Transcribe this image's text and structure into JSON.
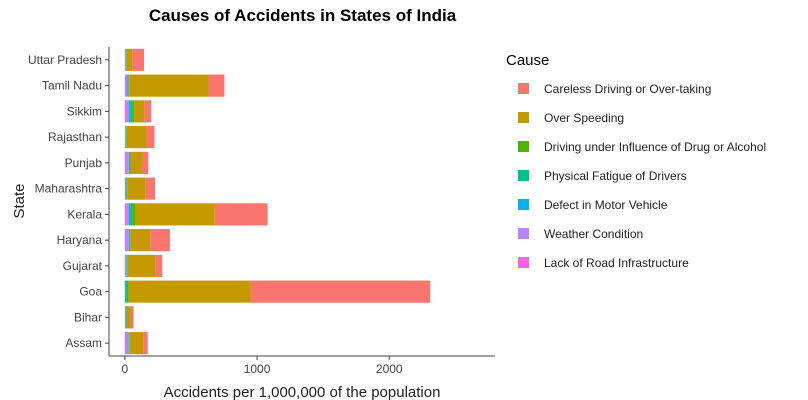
{
  "chart_data": {
    "type": "bar",
    "orientation": "horizontal",
    "stacked": true,
    "title": "Causes of Accidents in States of India",
    "xlabel": "Accidents per 1,000,000 of the population",
    "ylabel": "State",
    "xlim": [
      -120,
      2800
    ],
    "xticks": [
      0,
      1000,
      2000
    ],
    "grid": false,
    "legend_title": "Cause",
    "legend_position": "right",
    "categories": [
      "Assam",
      "Bihar",
      "Goa",
      "Gujarat",
      "Haryana",
      "Kerala",
      "Maharashtra",
      "Punjab",
      "Rajasthan",
      "Sikkim",
      "Tamil Nadu",
      "Uttar Pradesh"
    ],
    "series": [
      {
        "name": "Lack of Road Infrastructure",
        "color": "#F564E3",
        "values": [
          5,
          0,
          0,
          0,
          5,
          15,
          0,
          5,
          0,
          15,
          5,
          0
        ]
      },
      {
        "name": "Weather Condition",
        "color": "#B983FF",
        "values": [
          20,
          5,
          0,
          10,
          25,
          15,
          5,
          25,
          3,
          15,
          15,
          5
        ]
      },
      {
        "name": "Defect in Motor Vehicle",
        "color": "#00B4F0",
        "values": [
          5,
          3,
          5,
          5,
          5,
          10,
          5,
          5,
          3,
          15,
          5,
          3
        ]
      },
      {
        "name": "Physical Fatigue of Drivers",
        "color": "#00C08B",
        "values": [
          3,
          3,
          10,
          3,
          3,
          15,
          3,
          3,
          3,
          10,
          3,
          2
        ]
      },
      {
        "name": "Driving under Influence of Drug or Alcohol",
        "color": "#53B400",
        "values": [
          5,
          5,
          15,
          5,
          3,
          25,
          5,
          5,
          5,
          15,
          5,
          5
        ]
      },
      {
        "name": "Over Speeding",
        "color": "#C49A00",
        "values": [
          100,
          30,
          920,
          210,
          150,
          600,
          140,
          90,
          150,
          80,
          600,
          40
        ]
      },
      {
        "name": "Careless Driving or Over-taking",
        "color": "#F8766D",
        "values": [
          35,
          20,
          1360,
          50,
          150,
          400,
          70,
          45,
          60,
          50,
          120,
          90
        ]
      }
    ]
  }
}
